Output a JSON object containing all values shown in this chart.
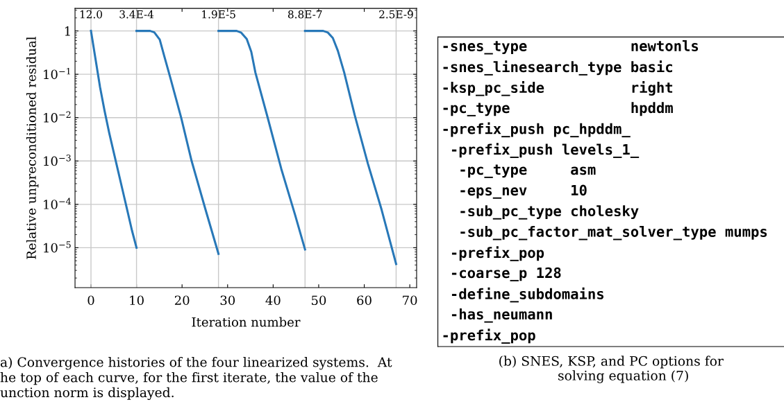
{
  "chart_data": [
    {
      "type": "line",
      "xlabel": "Iteration number",
      "ylabel": "Relative unpreconditioned residual",
      "log": "y",
      "grid": "y",
      "marker": "none",
      "line_style": "solid",
      "xlim": [
        -3.5,
        71.5
      ],
      "xticks": [
        0,
        10,
        20,
        30,
        40,
        50,
        60,
        70
      ],
      "ylim": [
        1.2e-06,
        3.3
      ],
      "yticks": [
        {
          "value": 1,
          "label": "1"
        },
        {
          "value": 0.1,
          "label": "10$^{−1}$"
        },
        {
          "value": 0.01,
          "label": "10$^{−2}$"
        },
        {
          "value": 0.001,
          "label": "10$^{−3}$"
        },
        {
          "value": 0.0001,
          "label": "10$^{−4}$"
        },
        {
          "value": 1e-05,
          "label": "10$^{−5}$"
        }
      ],
      "series": [
        {
          "color": "#2878b8",
          "x": [
            0,
            1,
            2,
            3,
            4,
            5,
            6,
            7,
            8,
            9,
            10
          ],
          "values": [
            1,
            0.224,
            0.05,
            0.0141,
            0.00447,
            0.00158,
            0.000562,
            0.0002,
            7.1e-05,
            2.5e-05,
            1e-05
          ]
        },
        {
          "color": "#2878b8",
          "x": [
            10,
            13,
            13.9,
            15.1,
            16.1,
            17.4,
            19.8,
            22.1,
            25.1,
            28
          ],
          "values": [
            1,
            1,
            0.93,
            0.63,
            0.26,
            0.085,
            0.01,
            0.001,
            7.9e-05,
            7.2e-06
          ]
        },
        {
          "color": "#2878b8",
          "x": [
            28,
            32,
            33,
            34.2,
            35.2,
            36.1,
            38.8,
            41.8,
            44.8,
            47
          ],
          "values": [
            1,
            1,
            0.91,
            0.65,
            0.33,
            0.11,
            0.01,
            0.00065,
            5.8e-05,
            9.1e-06
          ]
        },
        {
          "color": "#2878b8",
          "x": [
            47,
            51,
            52,
            53.1,
            54.2,
            55.6,
            57.9,
            60.8,
            63.8,
            67
          ],
          "values": [
            1,
            1,
            0.92,
            0.69,
            0.35,
            0.11,
            0.0115,
            0.00087,
            7.6e-05,
            4.2e-06
          ]
        }
      ],
      "ref_lines": [
        {
          "axis": "x",
          "value": 0,
          "color": "#c8c8c8"
        },
        {
          "axis": "x",
          "value": 10,
          "color": "#c8c8c8"
        },
        {
          "axis": "x",
          "value": 28,
          "color": "#c8c8c8"
        },
        {
          "axis": "x",
          "value": 47,
          "color": "#c8c8c8"
        },
        {
          "axis": "x",
          "value": 67,
          "color": "#c8c8c8"
        }
      ],
      "annotations": [
        {
          "text": "12.0",
          "x": 0,
          "y": 2.3
        },
        {
          "text": "3.4E-4",
          "x": 10,
          "y": 2.3
        },
        {
          "text": "1.9E-5",
          "x": 28,
          "y": 2.3
        },
        {
          "text": "8.8E-7",
          "x": 47,
          "y": 2.3
        },
        {
          "text": "2.5E-9",
          "x": 67,
          "y": 2.3
        },
        "a) Convergence histories of the four linearized systems.  At\nhe top of each curve, for the first iterate, the value of the\nunction norm is displayed."
      ]
    },
    {
      "type": "other",
      "title": "(b) SNES, KSP, and PC options for\n      solving equation (7)",
      "annotations": [
        "-snes_type            newtonls",
        "-snes_linesearch_type basic",
        "-ksp_pc_side          right",
        "-pc_type              hpddm",
        "-prefix_push pc_hpddm_",
        " -prefix_push levels_1_",
        "  -pc_type     asm",
        "  -eps_nev     10",
        "  -sub_pc_type cholesky",
        "  -sub_pc_factor_mat_solver_type mumps",
        " -prefix_pop",
        " -coarse_p 128",
        " -define_subdomains",
        " -has_neumann",
        "-prefix_pop"
      ]
    }
  ]
}
